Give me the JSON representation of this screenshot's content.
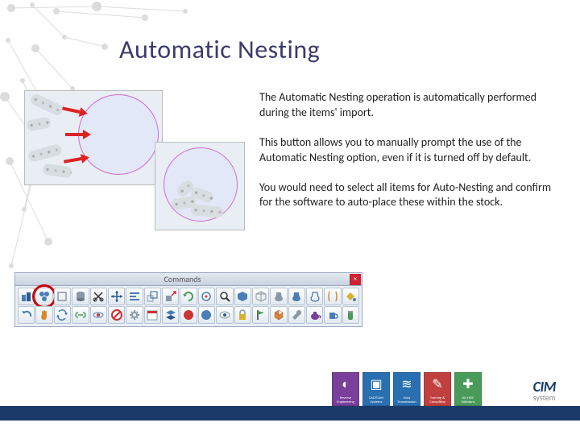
{
  "title": "Automatic Nesting",
  "paragraphs": [
    "The Automatic Nesting operation is automatically performed during the items' import.",
    "This button allows you to manually prompt the use of the Automatic Nesting option, even if it is turned off by default.",
    "You would need to select all items for Auto-Nesting and confirm for the software to auto-place these within the stock."
  ],
  "toolbar": {
    "title": "Commands",
    "close": "×",
    "highlighted_index": 1,
    "buttons_row1": [
      "box-stack",
      "nesting",
      "panel",
      "cylinder",
      "cut-scissors",
      "move-arrows",
      "align",
      "scale",
      "scale-up",
      "rotate",
      "rotate-center",
      "zoom",
      "view-solid",
      "view-wire",
      "vase-1",
      "vase-2",
      "vase-3",
      "bracket",
      "fill"
    ],
    "buttons_row2": [
      "undo",
      "hand",
      "refresh",
      "link",
      "orbit",
      "deny",
      "gear",
      "calendar",
      "layers",
      "palette-red",
      "palette-blue",
      "eye",
      "lock",
      "flag",
      "cube",
      "tool",
      "teapot",
      "cup",
      "jar"
    ]
  },
  "footer": {
    "boxes": [
      {
        "color": "#7a3e9b",
        "label": "Reverse Engineering"
      },
      {
        "color": "#2a6fb0",
        "label": "CAD/CAM Systems"
      },
      {
        "color": "#2a6fb0",
        "label": "Data Transmission"
      },
      {
        "color": "#c04040",
        "label": "Training & Consulting"
      },
      {
        "color": "#4a9a5a",
        "label": "AD HOC Solutions"
      }
    ],
    "brand_main": "CIM",
    "brand_sub": "system"
  },
  "bg_network": {
    "dots": [
      [
        14,
        10,
        5
      ],
      [
        40,
        6,
        3
      ],
      [
        70,
        14,
        4
      ],
      [
        120,
        8,
        6
      ],
      [
        180,
        22,
        4
      ],
      [
        230,
        14,
        3
      ],
      [
        10,
        50,
        3
      ],
      [
        44,
        60,
        5
      ],
      [
        80,
        46,
        3
      ],
      [
        130,
        58,
        4
      ],
      [
        6,
        120,
        6
      ],
      [
        28,
        100,
        3
      ],
      [
        60,
        140,
        4
      ],
      [
        90,
        110,
        3
      ],
      [
        12,
        200,
        5
      ],
      [
        48,
        180,
        3
      ],
      [
        80,
        220,
        4
      ],
      [
        30,
        260,
        3
      ],
      [
        60,
        300,
        5
      ],
      [
        14,
        330,
        3
      ]
    ],
    "lines": [
      [
        14,
        10,
        120,
        8
      ],
      [
        40,
        6,
        80,
        46
      ],
      [
        70,
        14,
        180,
        22
      ],
      [
        120,
        8,
        230,
        14
      ],
      [
        10,
        50,
        60,
        140
      ],
      [
        44,
        60,
        90,
        110
      ],
      [
        6,
        120,
        48,
        180
      ],
      [
        28,
        100,
        80,
        220
      ],
      [
        12,
        200,
        60,
        300
      ],
      [
        48,
        180,
        30,
        260
      ],
      [
        80,
        46,
        130,
        58
      ],
      [
        60,
        140,
        14,
        330
      ]
    ],
    "color": "#bbbbbb"
  }
}
